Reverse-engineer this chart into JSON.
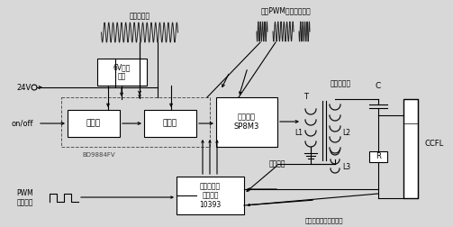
{
  "bg_color": "#d8d8d8",
  "labels": {
    "v24": "24V",
    "onoff": "on/off",
    "pwm": "PWM\n亮度控制",
    "reg6v": "6V稳压\n电路",
    "osc": "振荡器",
    "mod": "调制器",
    "power": "功率输出\nSP8M3",
    "bd": "BD9884FV",
    "prot": "过压、过流\n保护检测\n10393",
    "voltage_sample": "电压取样",
    "transformer": "高压变压器",
    "ccfl": "CCFL",
    "L1": "L1",
    "L2": "L2",
    "L3": "L3",
    "T": "T",
    "C": "C",
    "R": "R",
    "wave1_label": "连续振荡波",
    "wave2_label": "经过PWM调制后的波形",
    "feedback": "灯管工作电流取样反馈"
  }
}
